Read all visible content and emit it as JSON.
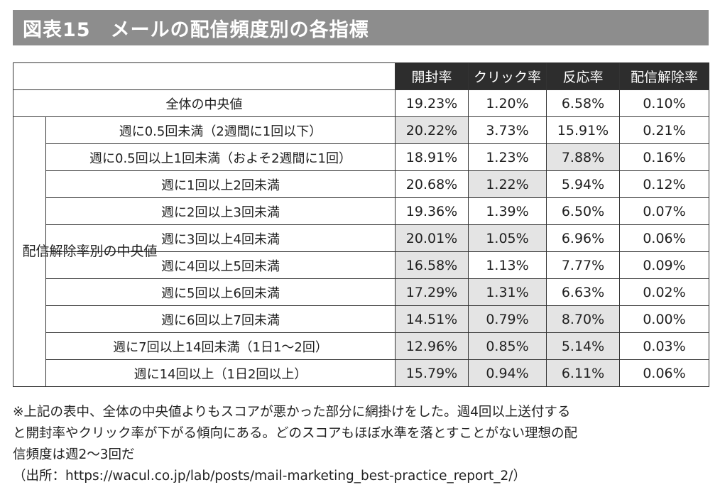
{
  "title": "図表15　メールの配信頻度別の各指標",
  "columns": [
    "開封率",
    "クリック率",
    "反応率",
    "配信解除率"
  ],
  "overall": {
    "label": "全体の中央値",
    "values": [
      "19.23%",
      "1.20%",
      "6.58%",
      "0.10%"
    ]
  },
  "group_label": "配信解除率別の中央値",
  "rows": [
    {
      "label": "週に0.5回未満（2週間に1回以下）",
      "values": [
        "20.22%",
        "3.73%",
        "15.91%",
        "0.21%"
      ]
    },
    {
      "label": "週に0.5回以上1回未満（およそ2週間に1回）",
      "values": [
        "18.91%",
        "1.23%",
        "7.88%",
        "0.16%"
      ]
    },
    {
      "label": "週に1回以上2回未満",
      "values": [
        "20.68%",
        "1.22%",
        "5.94%",
        "0.12%"
      ]
    },
    {
      "label": "週に2回以上3回未満",
      "values": [
        "19.36%",
        "1.39%",
        "6.50%",
        "0.07%"
      ]
    },
    {
      "label": "週に3回以上4回未満",
      "values": [
        "20.01%",
        "1.05%",
        "6.96%",
        "0.06%"
      ]
    },
    {
      "label": "週に4回以上5回未満",
      "values": [
        "16.58%",
        "1.13%",
        "7.77%",
        "0.09%"
      ]
    },
    {
      "label": "週に5回以上6回未満",
      "values": [
        "17.29%",
        "1.31%",
        "6.63%",
        "0.02%"
      ]
    },
    {
      "label": "週に6回以上7回未満",
      "values": [
        "14.51%",
        "0.79%",
        "8.70%",
        "0.00%"
      ]
    },
    {
      "label": "週に7回以上14回未満（1日1〜2回）",
      "values": [
        "12.96%",
        "0.85%",
        "5.14%",
        "0.03%"
      ]
    },
    {
      "label": "週に14回以上（1日2回以上）",
      "values": [
        "15.79%",
        "0.94%",
        "6.11%",
        "0.06%"
      ]
    }
  ],
  "shaded_cells": [
    [
      1,
      0
    ],
    [
      2,
      2
    ],
    [
      3,
      1
    ],
    [
      5,
      0
    ],
    [
      5,
      1
    ],
    [
      6,
      0
    ],
    [
      7,
      0
    ],
    [
      7,
      1
    ],
    [
      8,
      0
    ],
    [
      8,
      1
    ],
    [
      8,
      2
    ],
    [
      9,
      0
    ],
    [
      9,
      1
    ],
    [
      9,
      2
    ],
    [
      10,
      0
    ],
    [
      10,
      1
    ],
    [
      10,
      2
    ]
  ],
  "notes": {
    "line1": "※上記の表中、全体の中央値よりもスコアが悪かった部分に網掛けをした。週4回以上送付する",
    "line2": "と開封率やクリック率が下がる傾向にある。どのスコアもほぼ水準を落とすことがない理想の配",
    "line3": "信頻度は週2〜3回だ",
    "source": "（出所：https://wacul.co.jp/lab/posts/mail-marketing_best-practice_report_2/）"
  }
}
